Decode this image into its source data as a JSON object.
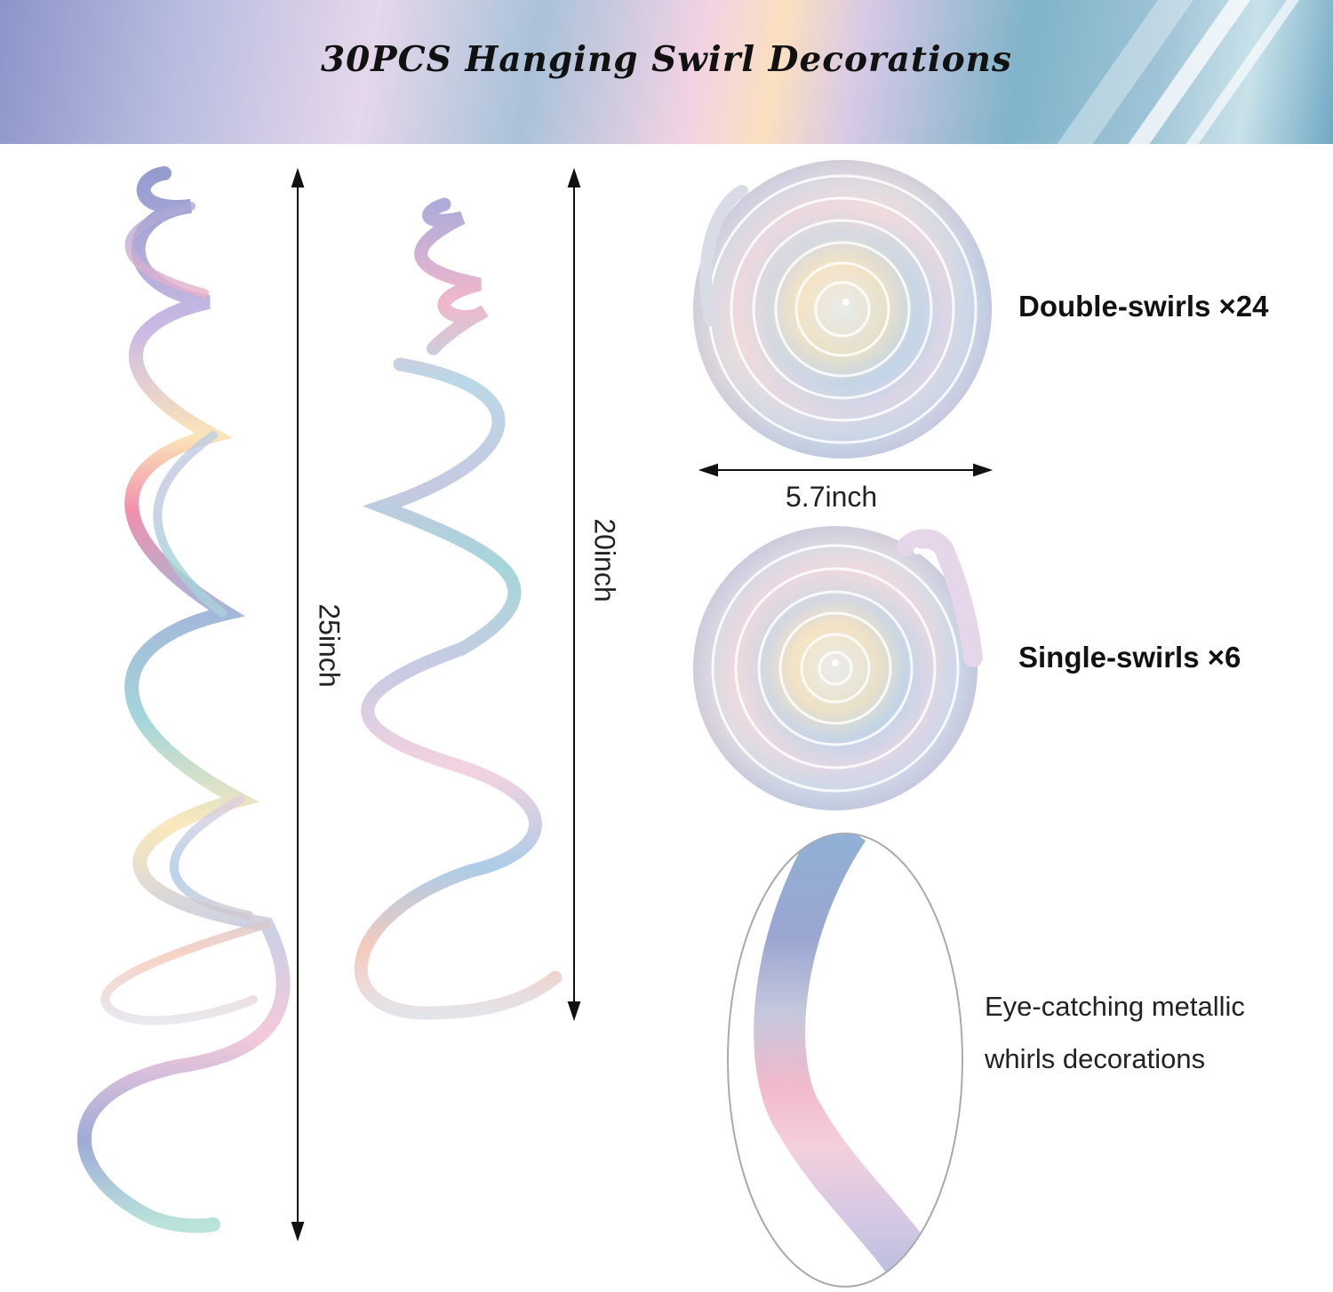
{
  "banner": {
    "title": "30PCS Hanging Swirl Decorations"
  },
  "measurements": {
    "long_swirl_length": "25inch",
    "short_swirl_length": "20inch",
    "disc_diameter": "5.7inch"
  },
  "items": {
    "double": "Double-swirls ×24",
    "single": "Single-swirls ×6"
  },
  "detail_caption": {
    "line1": "Eye-catching metallic",
    "line2": "whirls decorations"
  },
  "colors": {
    "holographic": [
      "#8e97cc",
      "#c9cde4",
      "#f3c6d9",
      "#fbe3b4",
      "#9fd4d8",
      "#b7b2e0",
      "#e8e8ee"
    ]
  }
}
